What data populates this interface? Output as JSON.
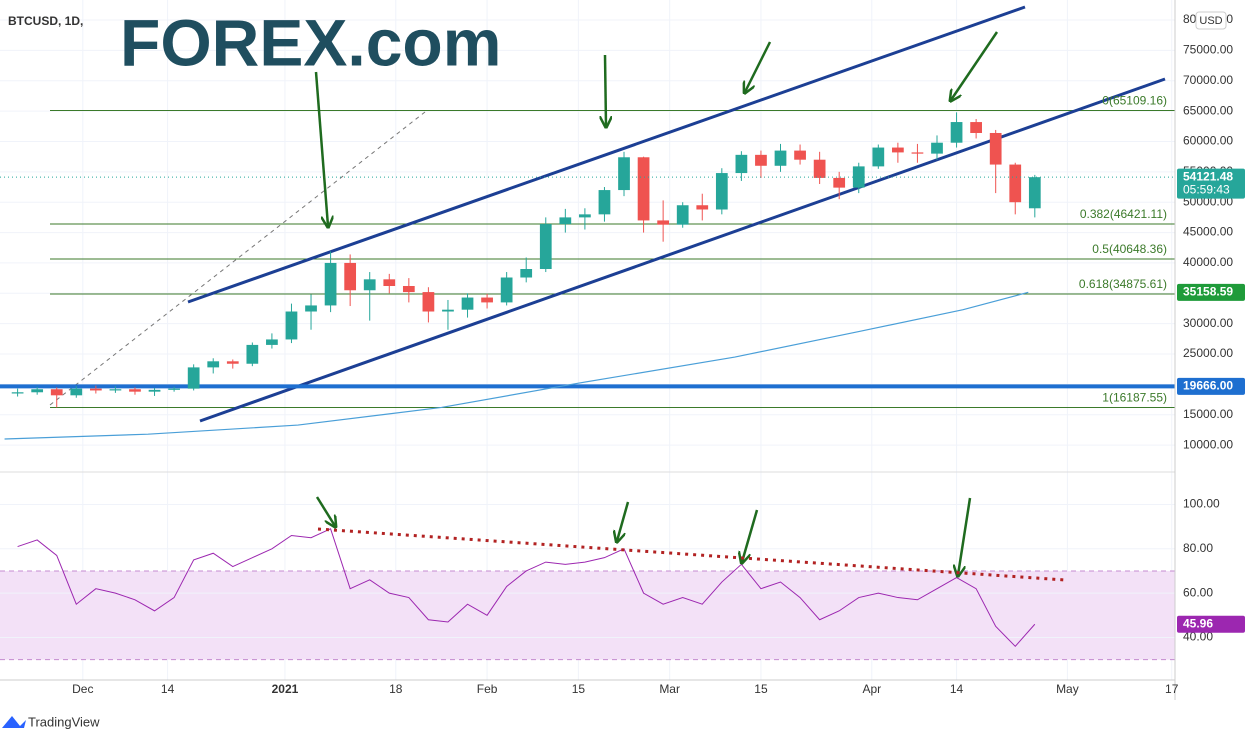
{
  "header": {
    "symbol": "BTCUSD, 1D,",
    "brand": "FOREX.com",
    "currency": "USD"
  },
  "chart_data": [
    {
      "type": "candlestick",
      "x": [
        -10,
        -7,
        -4,
        -1,
        2,
        5,
        8,
        11,
        14,
        17,
        20,
        23,
        26,
        29,
        32,
        35,
        38,
        41,
        44,
        47,
        50,
        53,
        56,
        59,
        62,
        65,
        68,
        71,
        74,
        77,
        80,
        83,
        86,
        89,
        92,
        95,
        98,
        101,
        104,
        107,
        110,
        113,
        116,
        119,
        122,
        125,
        128,
        131,
        134,
        137,
        140,
        143,
        146
      ],
      "open": [
        18500,
        18700,
        19200,
        18200,
        19300,
        19000,
        19200,
        18800,
        19100,
        19300,
        22800,
        23800,
        23400,
        26500,
        27400,
        32000,
        33000,
        40000,
        35500,
        37300,
        36200,
        35200,
        32000,
        32300,
        34300,
        33500,
        37600,
        39000,
        46400,
        47500,
        48000,
        52000,
        57400,
        47000,
        46300,
        49500,
        48800,
        54800,
        57800,
        56000,
        58500,
        57000,
        54000,
        52400,
        55900,
        59000,
        58200,
        58000,
        59800,
        63200,
        61400,
        56200,
        49000
      ],
      "high": [
        19300,
        19600,
        19500,
        19700,
        19800,
        19700,
        19500,
        19400,
        19600,
        23300,
        24300,
        24100,
        26900,
        28400,
        33300,
        34800,
        41900,
        41400,
        38500,
        38200,
        37500,
        36000,
        33900,
        35000,
        34900,
        38500,
        40900,
        47500,
        48900,
        49000,
        52500,
        58300,
        57500,
        50300,
        50000,
        51400,
        55600,
        58400,
        58500,
        59600,
        59500,
        58300,
        55000,
        56500,
        59500,
        59800,
        59600,
        61000,
        64800,
        63700,
        61900,
        56500,
        54500
      ],
      "low": [
        18000,
        18300,
        16200,
        17800,
        18500,
        18600,
        18300,
        18100,
        18800,
        19000,
        21800,
        22600,
        23000,
        25900,
        26800,
        29000,
        31900,
        32900,
        30500,
        35000,
        33500,
        30200,
        29000,
        31000,
        32500,
        33000,
        36800,
        38500,
        45000,
        45500,
        46800,
        51000,
        45000,
        43500,
        45800,
        47000,
        48000,
        53500,
        54000,
        55000,
        56200,
        53000,
        50500,
        51500,
        55500,
        56500,
        56500,
        57000,
        59000,
        60500,
        51500,
        48000,
        47500
      ],
      "close": [
        18700,
        19200,
        18200,
        19300,
        19000,
        19200,
        18800,
        19100,
        19300,
        22800,
        23800,
        23400,
        26500,
        27400,
        32000,
        33000,
        40000,
        35500,
        37300,
        36200,
        35200,
        32000,
        32300,
        34300,
        33500,
        37600,
        39000,
        46400,
        47500,
        48000,
        52000,
        57400,
        47000,
        46300,
        49500,
        48800,
        54800,
        57800,
        56000,
        58500,
        57000,
        54000,
        52400,
        55900,
        59000,
        58200,
        58000,
        59800,
        63200,
        61400,
        56200,
        50000,
        54121.48
      ],
      "up_color": "#26a69a",
      "down_color": "#ef5350",
      "xlim": [
        -12.7,
        167.5
      ],
      "xticks": [
        {
          "value": 0,
          "label": "Dec"
        },
        {
          "value": 13,
          "label": "14"
        },
        {
          "value": 31,
          "label": "2021"
        },
        {
          "value": 48,
          "label": "18"
        },
        {
          "value": 62,
          "label": "Feb"
        },
        {
          "value": 76,
          "label": "15"
        },
        {
          "value": 90,
          "label": "Mar"
        },
        {
          "value": 104,
          "label": "15"
        },
        {
          "value": 121,
          "label": "Apr"
        },
        {
          "value": 134,
          "label": "14"
        },
        {
          "value": 151,
          "label": "May"
        },
        {
          "value": 167,
          "label": "17"
        }
      ],
      "ylim": [
        5900,
        83300
      ],
      "yticks": [
        {
          "value": 10000,
          "label": "10000.00"
        },
        {
          "value": 15000,
          "label": "15000.00"
        },
        {
          "value": 20000,
          "label": "20000.00"
        },
        {
          "value": 25000,
          "label": "25000.00"
        },
        {
          "value": 30000,
          "label": "30000.00"
        },
        {
          "value": 35000,
          "label": "35000.00"
        },
        {
          "value": 40000,
          "label": "40000.00"
        },
        {
          "value": 45000,
          "label": "45000.00"
        },
        {
          "value": 50000,
          "label": "50000.00"
        },
        {
          "value": 55000,
          "label": "55000.00"
        },
        {
          "value": 60000,
          "label": "60000.00"
        },
        {
          "value": 65000,
          "label": "65000.00"
        },
        {
          "value": 70000,
          "label": "70000.00"
        },
        {
          "value": 75000,
          "label": "75000.00"
        },
        {
          "value": 80000,
          "label": "80000.00"
        }
      ],
      "levels": [
        {
          "value": 65109.16,
          "label": "0(65109.16)"
        },
        {
          "value": 46421.11,
          "label": "0.382(46421.11)"
        },
        {
          "value": 40648.36,
          "label": "0.5(40648.36)"
        },
        {
          "value": 34875.61,
          "label": "0.618(34875.61)"
        },
        {
          "value": 16187.55,
          "label": "1(16187.55)"
        }
      ],
      "level_color": "#3b7a2a",
      "moving_average": {
        "color": "#4a9fd8",
        "x": [
          -12,
          10,
          33,
          55,
          76,
          100,
          119,
          135,
          145
        ],
        "values": [
          11000,
          11800,
          13300,
          16200,
          20200,
          24500,
          28700,
          32300,
          35158.59
        ]
      },
      "ma_last": {
        "value": 35158.59,
        "label": "35158.59",
        "color": "#1f9b3a"
      },
      "support": {
        "value": 19666,
        "label": "19666.00",
        "color": "#1e6fd0"
      },
      "last_price": {
        "value": 54121.48,
        "label": "54121.48",
        "countdown": "05:59:43",
        "color": "#26a69a"
      }
    },
    {
      "type": "line",
      "x": [
        -10,
        -7,
        -4,
        -1,
        2,
        5,
        8,
        11,
        14,
        17,
        20,
        23,
        26,
        29,
        32,
        35,
        38,
        41,
        44,
        47,
        50,
        53,
        56,
        59,
        62,
        65,
        68,
        71,
        74,
        77,
        80,
        83,
        86,
        89,
        92,
        95,
        98,
        101,
        104,
        107,
        110,
        113,
        116,
        119,
        122,
        125,
        128,
        131,
        134,
        137,
        140,
        143,
        146
      ],
      "values": [
        81,
        84,
        77,
        55,
        62,
        60,
        57,
        52,
        58,
        75,
        78,
        72,
        76,
        80,
        86,
        85,
        89,
        62,
        66,
        60,
        58,
        48,
        47,
        55,
        50,
        63,
        70,
        74,
        73,
        74,
        76,
        80,
        60,
        55,
        58,
        55,
        65,
        73,
        62,
        65,
        58,
        48,
        52,
        58,
        60,
        58,
        57,
        62,
        67,
        62,
        45,
        36,
        45.96
      ],
      "color": "#9c27b0",
      "ylim": [
        20.8,
        113.3
      ],
      "yticks": [
        {
          "value": 40,
          "label": "40.00"
        },
        {
          "value": 60,
          "label": "60.00"
        },
        {
          "value": 80,
          "label": "80.00"
        },
        {
          "value": 100,
          "label": "100.00"
        }
      ],
      "band": [
        30,
        70
      ],
      "band_color": "#f3e1f7",
      "last": {
        "value": 45.96,
        "label": "45.96"
      }
    }
  ],
  "footer": {
    "brand": "TradingView"
  }
}
